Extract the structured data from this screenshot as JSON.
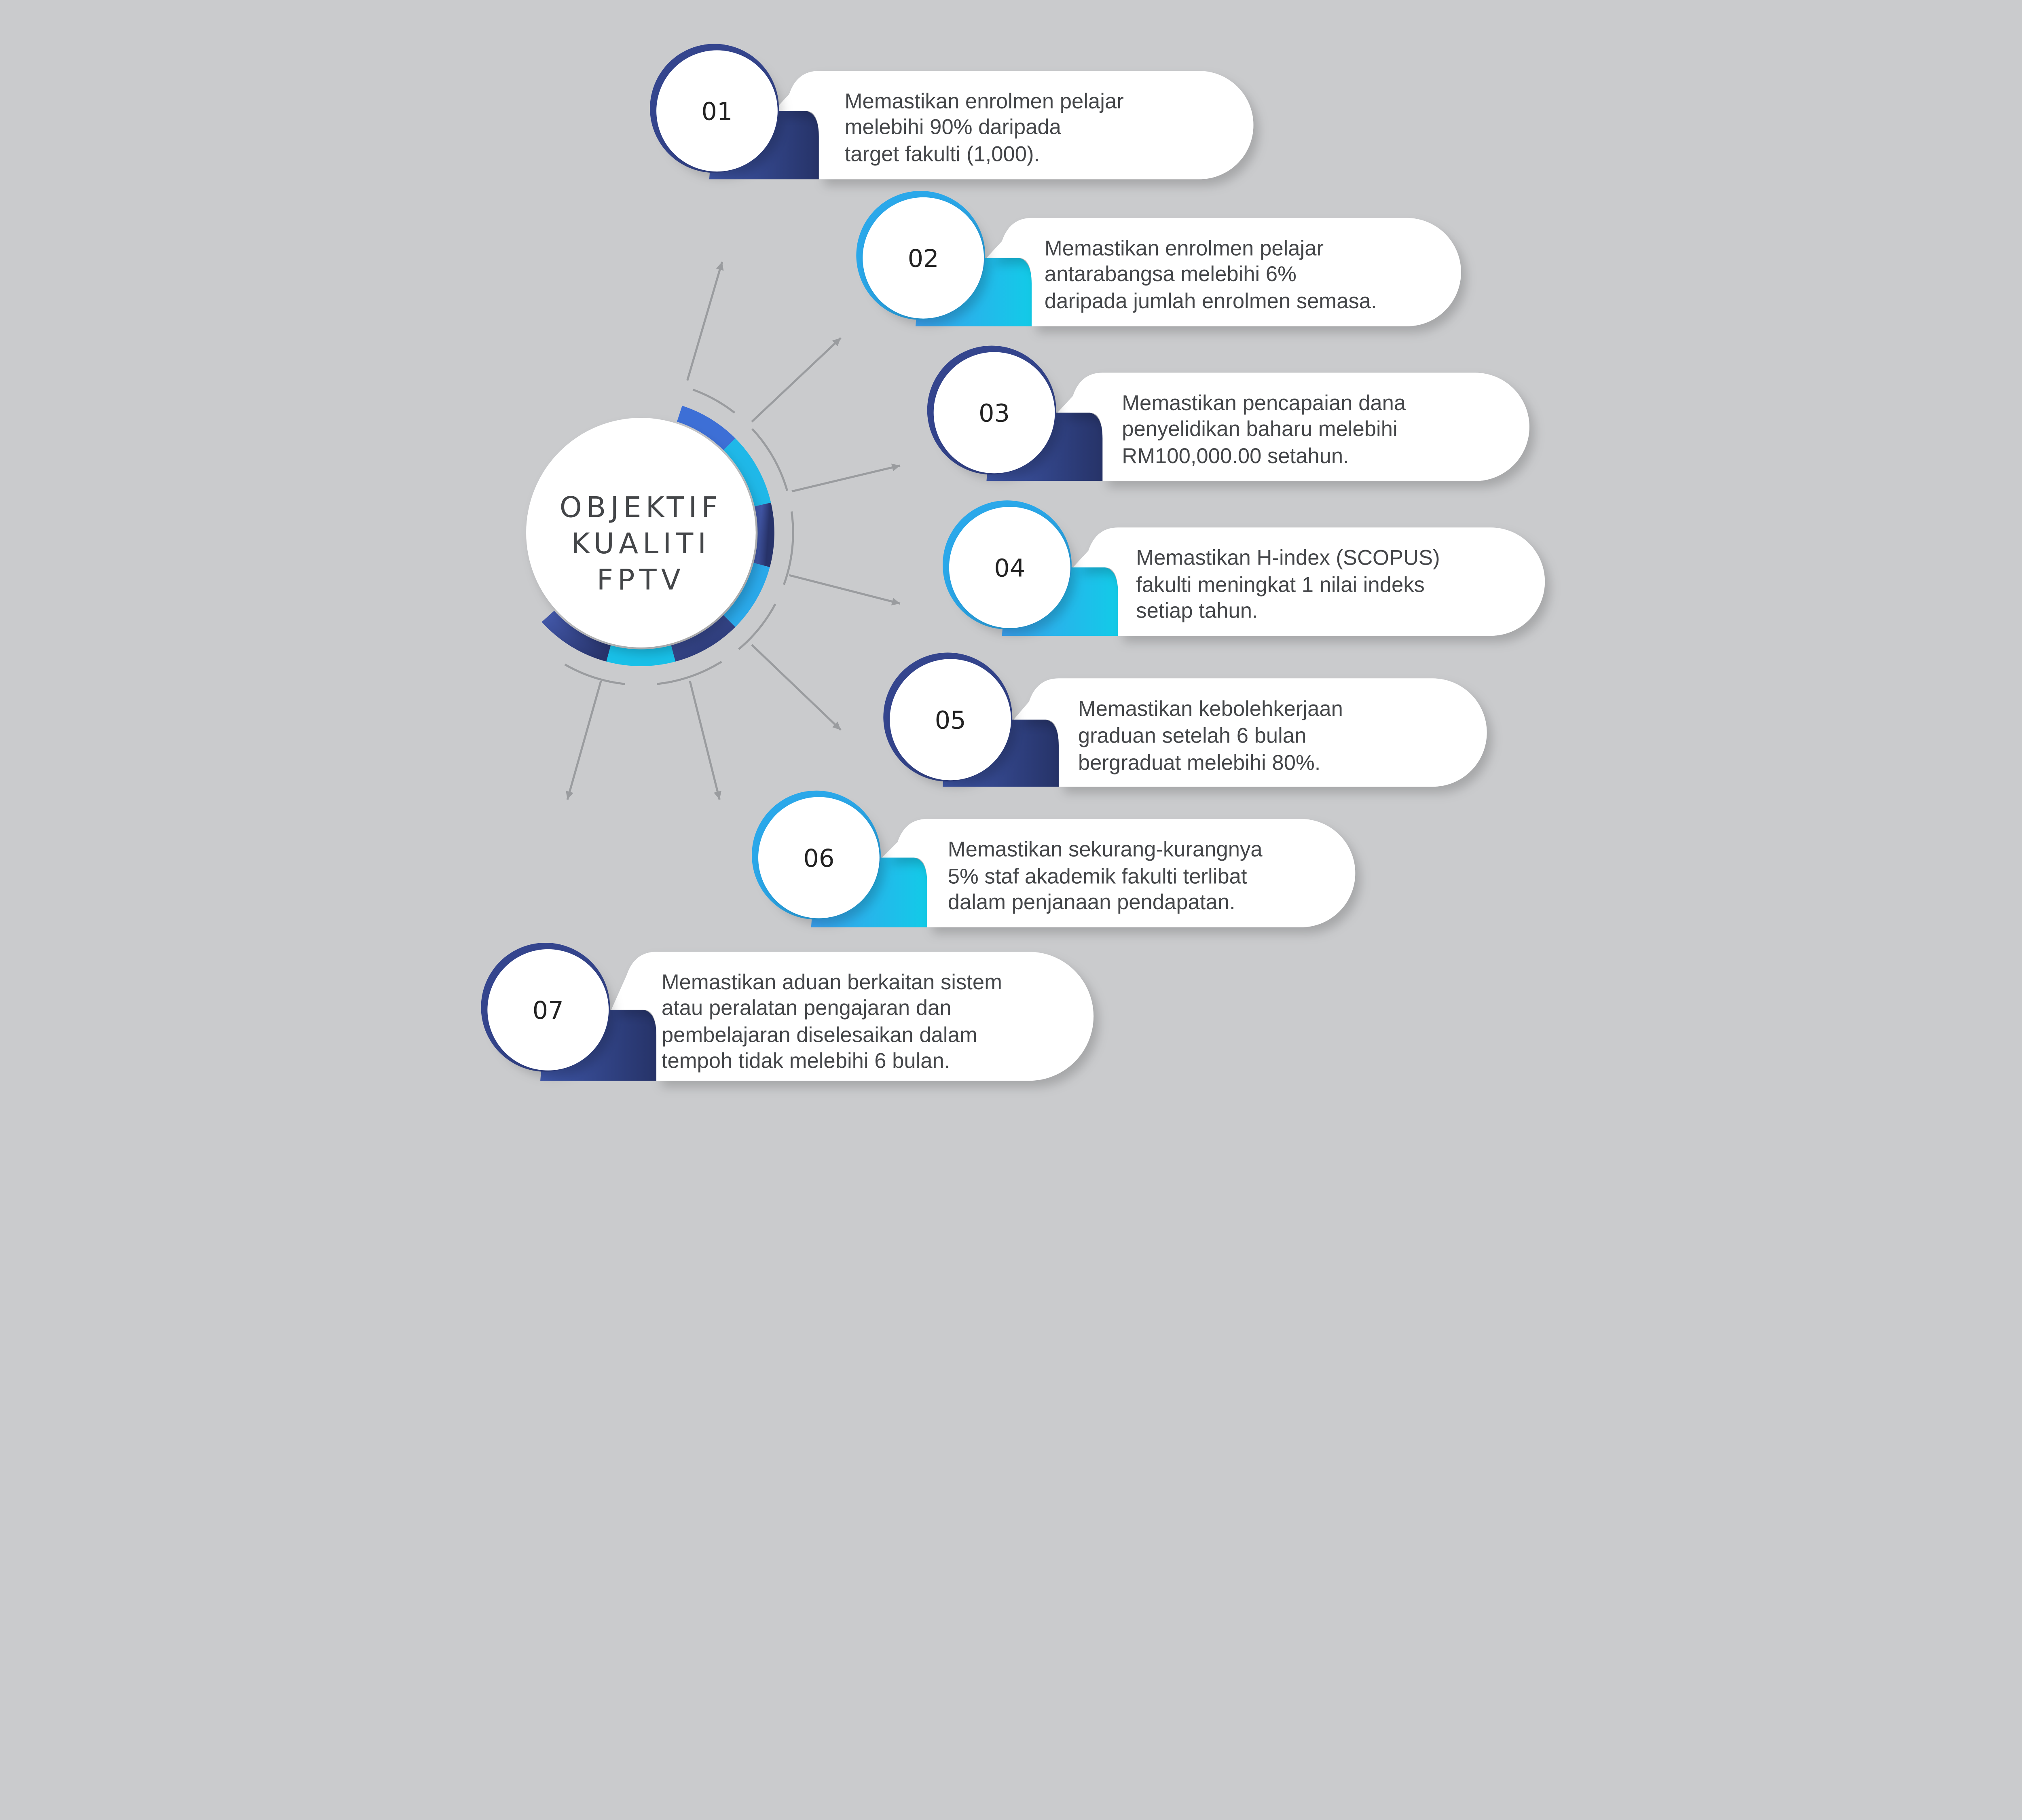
{
  "title": {
    "lines": [
      "OBJEKTIF",
      "KUALITI",
      "FPTV"
    ]
  },
  "colors": {
    "background": "#cacbcd",
    "navy": "#2e3d7c",
    "cyan": "#16c8e8",
    "blue": "#3d77dc",
    "text": "#444649",
    "line": "#9a9c9f"
  },
  "items": [
    {
      "number": "01",
      "accent": "navy",
      "lines": [
        "Memastikan enrolmen pelajar",
        "melebihi 90% daripada",
        "target fakulti (1,000)."
      ]
    },
    {
      "number": "02",
      "accent": "cyan",
      "lines": [
        "Memastikan enrolmen pelajar",
        "antarabangsa melebihi 6%",
        "daripada jumlah enrolmen semasa."
      ]
    },
    {
      "number": "03",
      "accent": "navy",
      "lines": [
        "Memastikan pencapaian dana",
        "penyelidikan baharu melebihi",
        "RM100,000.00 setahun."
      ]
    },
    {
      "number": "04",
      "accent": "cyan",
      "lines": [
        "Memastikan H-index (SCOPUS)",
        "fakulti meningkat 1 nilai indeks",
        "setiap tahun."
      ]
    },
    {
      "number": "05",
      "accent": "navy",
      "lines": [
        "Memastikan kebolehkerjaan",
        "graduan setelah 6 bulan",
        "bergraduat melebihi 80%."
      ]
    },
    {
      "number": "06",
      "accent": "cyan",
      "lines": [
        "Memastikan sekurang-kurangnya",
        "5% staf akademik fakulti terlibat",
        "dalam penjanaan pendapatan."
      ]
    },
    {
      "number": "07",
      "accent": "navy",
      "lines": [
        "Memastikan aduan berkaitan sistem",
        "atau peralatan pengajaran dan",
        "pembelajaran diselesaikan dalam",
        "tempoh tidak melebihi 6 bulan."
      ]
    }
  ]
}
